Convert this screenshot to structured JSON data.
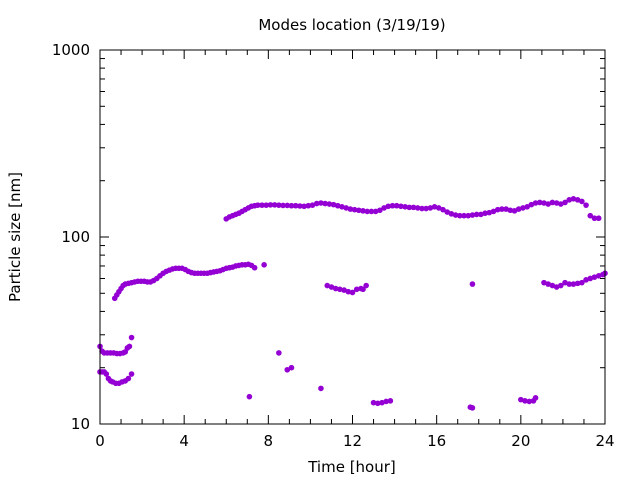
{
  "chart_data": {
    "type": "scatter",
    "title": "Modes location (3/19/19)",
    "xlabel": "Time [hour]",
    "ylabel": "Particle size [nm]",
    "xlim": [
      0,
      24
    ],
    "ylim": [
      10,
      1000
    ],
    "yscale": "log",
    "xticks": [
      0,
      4,
      8,
      12,
      16,
      20,
      24
    ],
    "yticks": [
      10,
      100,
      1000
    ],
    "grid": false,
    "legend": "none",
    "marker_color": "#9400d3",
    "series": [
      {
        "points": [
          [
            0.0,
            26
          ],
          [
            0.1,
            24.5
          ],
          [
            0.2,
            24
          ],
          [
            0.35,
            24
          ],
          [
            0.5,
            24
          ],
          [
            0.65,
            24
          ],
          [
            0.8,
            23.8
          ],
          [
            0.95,
            23.8
          ],
          [
            1.1,
            24
          ],
          [
            1.2,
            24.3
          ],
          [
            1.3,
            25.5
          ],
          [
            1.4,
            26
          ],
          [
            1.5,
            29
          ],
          [
            0.0,
            19
          ],
          [
            0.1,
            19
          ],
          [
            0.2,
            19
          ],
          [
            0.3,
            18.5
          ],
          [
            0.4,
            17.5
          ],
          [
            0.5,
            17
          ],
          [
            0.6,
            16.8
          ],
          [
            0.75,
            16.5
          ],
          [
            0.9,
            16.5
          ],
          [
            1.05,
            16.8
          ],
          [
            1.2,
            17
          ],
          [
            1.35,
            17.5
          ],
          [
            1.5,
            18.5
          ],
          [
            0.7,
            47
          ],
          [
            0.8,
            49
          ],
          [
            0.9,
            51
          ],
          [
            1.0,
            53
          ],
          [
            1.1,
            55
          ],
          [
            1.2,
            56
          ],
          [
            1.35,
            56.5
          ],
          [
            1.5,
            57
          ],
          [
            1.65,
            57.5
          ],
          [
            1.8,
            58
          ],
          [
            1.95,
            58
          ],
          [
            2.1,
            58
          ],
          [
            2.25,
            57.5
          ],
          [
            2.4,
            57.5
          ],
          [
            2.55,
            58.5
          ],
          [
            2.7,
            60
          ],
          [
            2.85,
            62
          ],
          [
            3.0,
            64
          ],
          [
            3.15,
            65.5
          ],
          [
            3.3,
            66.5
          ],
          [
            3.45,
            67.5
          ],
          [
            3.6,
            68
          ],
          [
            3.75,
            68
          ],
          [
            3.9,
            68
          ],
          [
            4.05,
            67
          ],
          [
            4.2,
            65.5
          ],
          [
            4.35,
            64.5
          ],
          [
            4.5,
            64
          ],
          [
            4.65,
            64
          ],
          [
            4.8,
            64
          ],
          [
            4.95,
            64
          ],
          [
            5.1,
            64
          ],
          [
            5.25,
            64.5
          ],
          [
            5.4,
            65
          ],
          [
            5.55,
            65.5
          ],
          [
            5.7,
            66
          ],
          [
            5.85,
            67
          ],
          [
            6.0,
            68
          ],
          [
            6.15,
            68.5
          ],
          [
            6.3,
            69
          ],
          [
            6.45,
            70
          ],
          [
            6.6,
            70.5
          ],
          [
            6.75,
            71
          ],
          [
            6.9,
            71
          ],
          [
            7.05,
            71.5
          ],
          [
            7.2,
            70.5
          ],
          [
            7.35,
            68.5
          ],
          [
            7.8,
            71
          ],
          [
            6.0,
            125
          ],
          [
            6.15,
            128
          ],
          [
            6.3,
            130
          ],
          [
            6.45,
            132
          ],
          [
            6.6,
            134
          ],
          [
            6.75,
            137
          ],
          [
            6.9,
            140
          ],
          [
            7.05,
            143
          ],
          [
            7.2,
            146
          ],
          [
            7.35,
            147
          ],
          [
            7.5,
            148
          ],
          [
            7.7,
            148
          ],
          [
            7.9,
            148
          ],
          [
            8.1,
            148.5
          ],
          [
            8.3,
            148.5
          ],
          [
            8.5,
            148
          ],
          [
            8.7,
            147.5
          ],
          [
            8.9,
            147.5
          ],
          [
            9.1,
            147
          ],
          [
            9.3,
            147
          ],
          [
            9.5,
            146.5
          ],
          [
            9.7,
            146
          ],
          [
            9.9,
            147
          ],
          [
            10.1,
            148
          ],
          [
            10.3,
            151
          ],
          [
            10.5,
            152
          ],
          [
            10.7,
            151
          ],
          [
            10.9,
            150
          ],
          [
            11.1,
            149
          ],
          [
            11.3,
            147
          ],
          [
            11.5,
            145
          ],
          [
            11.7,
            143
          ],
          [
            11.9,
            141
          ],
          [
            12.1,
            140
          ],
          [
            12.3,
            139
          ],
          [
            12.5,
            138
          ],
          [
            12.7,
            137
          ],
          [
            12.9,
            137
          ],
          [
            13.1,
            137
          ],
          [
            13.3,
            139
          ],
          [
            13.5,
            143
          ],
          [
            13.7,
            146
          ],
          [
            13.9,
            147
          ],
          [
            14.1,
            147
          ],
          [
            14.3,
            146
          ],
          [
            14.5,
            145
          ],
          [
            14.7,
            144
          ],
          [
            14.9,
            144
          ],
          [
            15.1,
            143
          ],
          [
            15.3,
            142
          ],
          [
            15.5,
            142
          ],
          [
            15.7,
            143
          ],
          [
            15.9,
            145
          ],
          [
            16.1,
            143
          ],
          [
            16.3,
            140
          ],
          [
            16.5,
            136
          ],
          [
            16.7,
            133
          ],
          [
            16.9,
            131
          ],
          [
            17.1,
            130
          ],
          [
            17.3,
            130
          ],
          [
            17.5,
            130
          ],
          [
            17.7,
            131
          ],
          [
            17.9,
            132
          ],
          [
            18.1,
            132
          ],
          [
            18.3,
            134
          ],
          [
            18.5,
            135
          ],
          [
            18.7,
            137
          ],
          [
            18.9,
            140
          ],
          [
            19.1,
            141
          ],
          [
            19.3,
            141
          ],
          [
            19.5,
            139
          ],
          [
            19.7,
            138
          ],
          [
            19.9,
            141
          ],
          [
            20.1,
            143
          ],
          [
            20.3,
            145
          ],
          [
            20.5,
            149
          ],
          [
            20.7,
            152
          ],
          [
            20.9,
            153
          ],
          [
            21.1,
            152
          ],
          [
            21.3,
            150
          ],
          [
            21.5,
            153
          ],
          [
            21.7,
            152
          ],
          [
            21.9,
            150
          ],
          [
            22.1,
            153
          ],
          [
            22.3,
            158
          ],
          [
            22.5,
            160
          ],
          [
            22.7,
            158
          ],
          [
            22.9,
            155
          ],
          [
            23.1,
            148
          ],
          [
            23.3,
            130
          ],
          [
            23.5,
            126
          ],
          [
            23.7,
            126
          ],
          [
            10.8,
            55
          ],
          [
            11.0,
            54
          ],
          [
            11.2,
            53
          ],
          [
            11.4,
            52.5
          ],
          [
            11.6,
            52
          ],
          [
            11.8,
            51
          ],
          [
            12.0,
            50.5
          ],
          [
            12.2,
            52.5
          ],
          [
            12.4,
            53
          ],
          [
            12.5,
            52.5
          ],
          [
            12.65,
            55
          ],
          [
            8.5,
            24
          ],
          [
            8.9,
            19.5
          ],
          [
            9.1,
            20
          ],
          [
            10.5,
            15.5
          ],
          [
            7.1,
            14
          ],
          [
            13.0,
            13
          ],
          [
            13.2,
            12.9
          ],
          [
            13.4,
            13
          ],
          [
            13.6,
            13.2
          ],
          [
            13.8,
            13.3
          ],
          [
            17.6,
            12.3
          ],
          [
            17.7,
            12.2
          ],
          [
            17.7,
            56
          ],
          [
            20.0,
            13.5
          ],
          [
            20.2,
            13.3
          ],
          [
            20.4,
            13.2
          ],
          [
            20.6,
            13.3
          ],
          [
            20.7,
            13.8
          ],
          [
            21.1,
            57
          ],
          [
            21.3,
            56
          ],
          [
            21.5,
            55
          ],
          [
            21.7,
            54
          ],
          [
            21.9,
            55
          ],
          [
            22.1,
            57
          ],
          [
            22.3,
            56
          ],
          [
            22.5,
            56
          ],
          [
            22.7,
            56.5
          ],
          [
            22.9,
            57
          ],
          [
            23.1,
            59
          ],
          [
            23.3,
            60
          ],
          [
            23.5,
            61
          ],
          [
            23.7,
            62
          ],
          [
            23.9,
            63
          ],
          [
            24.0,
            64
          ]
        ]
      }
    ]
  }
}
